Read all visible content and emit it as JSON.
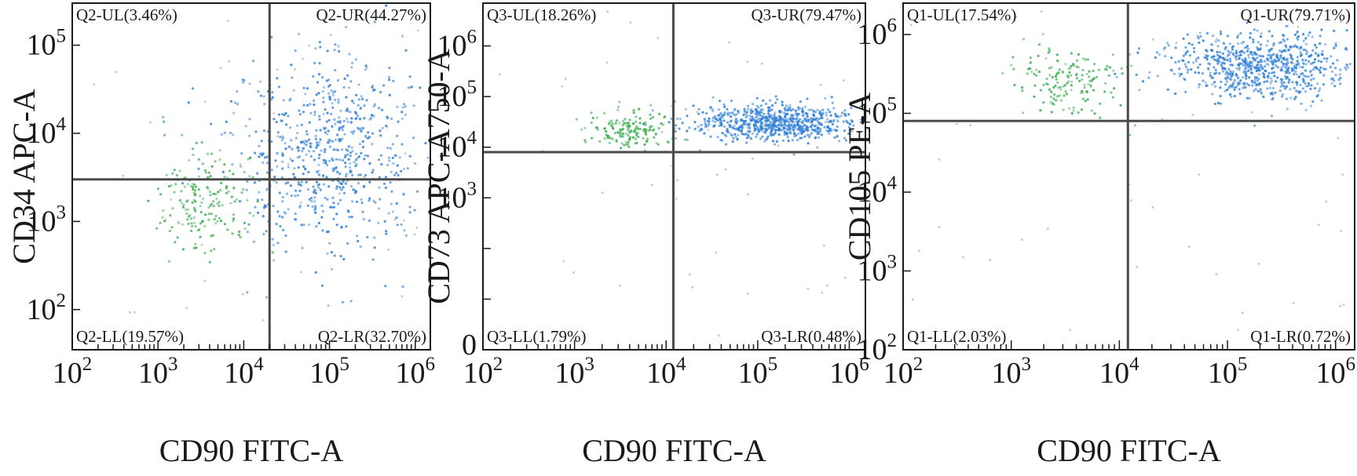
{
  "chart_data": [
    {
      "type": "scatter",
      "xlabel": "CD90 FITC-A",
      "ylabel": "CD34 APC-A",
      "xscale": "log",
      "yscale": "log",
      "xlim": [
        100,
        1500000
      ],
      "ylim": [
        35,
        300000
      ],
      "x_ticks": [
        {
          "base": "10",
          "exp": "2"
        },
        {
          "base": "10",
          "exp": "3"
        },
        {
          "base": "10",
          "exp": "4"
        },
        {
          "base": "10",
          "exp": "5"
        },
        {
          "base": "10",
          "exp": "6"
        }
      ],
      "y_ticks": [
        {
          "base": "10",
          "exp": "2"
        },
        {
          "base": "10",
          "exp": "3"
        },
        {
          "base": "10",
          "exp": "4"
        },
        {
          "base": "10",
          "exp": "5"
        }
      ],
      "gate": {
        "x": 20000,
        "y": 3000
      },
      "quadrants": {
        "UL": "Q2-UL(3.46%)",
        "UR": "Q2-UR(44.27%)",
        "LL": "Q2-LL(19.57%)",
        "LR": "Q2-LR(32.70%)"
      },
      "populations": [
        {
          "color": "#2f7fd6",
          "center": [
            100000,
            6000
          ],
          "spread": [
            0.55,
            0.55
          ],
          "share": 0.77
        },
        {
          "color": "#3cad4e",
          "center": [
            3500,
            1800
          ],
          "spread": [
            0.3,
            0.3
          ],
          "share": 0.2
        }
      ],
      "grid": false
    },
    {
      "type": "scatter",
      "xlabel": "CD90 FITC-A",
      "ylabel": "CD73 APC-A750-A",
      "xscale": "log",
      "yscale": "log",
      "xlim": [
        100,
        1500000
      ],
      "ylim": [
        1,
        7000000
      ],
      "x_ticks": [
        {
          "base": "10",
          "exp": "2"
        },
        {
          "base": "10",
          "exp": "3"
        },
        {
          "base": "10",
          "exp": "4"
        },
        {
          "base": "10",
          "exp": "5"
        },
        {
          "base": "10",
          "exp": "6"
        }
      ],
      "y_ticks": [
        {
          "base": "0",
          "exp": ""
        },
        {
          "base": "10",
          "exp": "3"
        },
        {
          "base": "10",
          "exp": "4"
        },
        {
          "base": "10",
          "exp": "5"
        },
        {
          "base": "10",
          "exp": "6"
        }
      ],
      "gate": {
        "x": 12000,
        "y": 8000
      },
      "quadrants": {
        "UL": "Q3-UL(18.26%)",
        "UR": "Q3-UR(79.47%)",
        "LL": "Q3-LL(1.79%)",
        "LR": "Q3-LR(0.48%)"
      },
      "populations": [
        {
          "color": "#2f7fd6",
          "center": [
            150000,
            30000
          ],
          "spread": [
            0.45,
            0.18
          ],
          "share": 0.79
        },
        {
          "color": "#3cad4e",
          "center": [
            4000,
            22000
          ],
          "spread": [
            0.25,
            0.22
          ],
          "share": 0.18
        }
      ],
      "grid": false
    },
    {
      "type": "scatter",
      "xlabel": "CD90 FITC-A",
      "ylabel": "CD105 PE-A",
      "xscale": "log",
      "yscale": "log",
      "xlim": [
        100,
        1500000
      ],
      "ylim": [
        100,
        2500000
      ],
      "x_ticks": [
        {
          "base": "10",
          "exp": "2"
        },
        {
          "base": "10",
          "exp": "3"
        },
        {
          "base": "10",
          "exp": "4"
        },
        {
          "base": "10",
          "exp": "5"
        },
        {
          "base": "10",
          "exp": "6"
        }
      ],
      "y_ticks": [
        {
          "base": "10",
          "exp": "2"
        },
        {
          "base": "10",
          "exp": "3"
        },
        {
          "base": "10",
          "exp": "4"
        },
        {
          "base": "10",
          "exp": "5"
        },
        {
          "base": "10",
          "exp": "6"
        }
      ],
      "gate": {
        "x": 12000,
        "y": 80000
      },
      "quadrants": {
        "UL": "Q1-UL(17.54%)",
        "UR": "Q1-UR(79.71%)",
        "LL": "Q1-LL(2.03%)",
        "LR": "Q1-LR(0.72%)"
      },
      "populations": [
        {
          "color": "#2f7fd6",
          "center": [
            200000,
            400000
          ],
          "spread": [
            0.4,
            0.22
          ],
          "share": 0.8
        },
        {
          "color": "#3cad4e",
          "center": [
            3500,
            260000
          ],
          "spread": [
            0.25,
            0.22
          ],
          "share": 0.18
        }
      ],
      "grid": false
    }
  ]
}
